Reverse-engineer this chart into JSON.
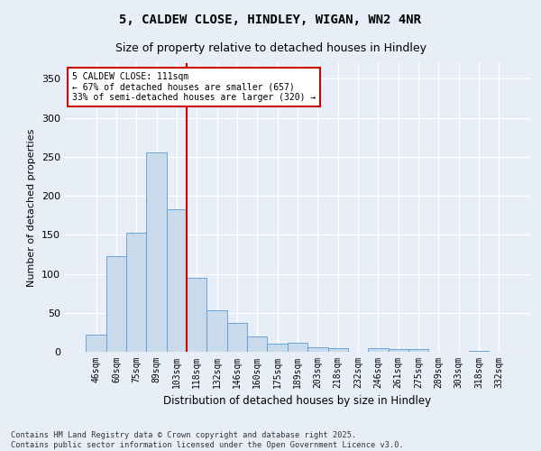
{
  "title1": "5, CALDEW CLOSE, HINDLEY, WIGAN, WN2 4NR",
  "title2": "Size of property relative to detached houses in Hindley",
  "xlabel": "Distribution of detached houses by size in Hindley",
  "ylabel": "Number of detached properties",
  "categories": [
    "46sqm",
    "60sqm",
    "75sqm",
    "89sqm",
    "103sqm",
    "118sqm",
    "132sqm",
    "146sqm",
    "160sqm",
    "175sqm",
    "189sqm",
    "203sqm",
    "218sqm",
    "232sqm",
    "246sqm",
    "261sqm",
    "275sqm",
    "289sqm",
    "303sqm",
    "318sqm",
    "332sqm"
  ],
  "values": [
    22,
    122,
    153,
    255,
    183,
    95,
    53,
    37,
    20,
    10,
    11,
    6,
    5,
    0,
    5,
    4,
    4,
    0,
    0,
    1,
    0
  ],
  "bar_color": "#c9daea",
  "bar_edge_color": "#5b9bd5",
  "background_color": "#e8eef8",
  "grid_color": "#ffffff",
  "vline_x": 4.5,
  "vline_color": "#cc0000",
  "annotation_text": "5 CALDEW CLOSE: 111sqm\n← 67% of detached houses are smaller (657)\n33% of semi-detached houses are larger (320) →",
  "annotation_box_color": "#ffffff",
  "annotation_box_edge": "#cc0000",
  "ylim": [
    0,
    370
  ],
  "yticks": [
    0,
    50,
    100,
    150,
    200,
    250,
    300,
    350
  ],
  "footer": "Contains HM Land Registry data © Crown copyright and database right 2025.\nContains public sector information licensed under the Open Government Licence v3.0."
}
